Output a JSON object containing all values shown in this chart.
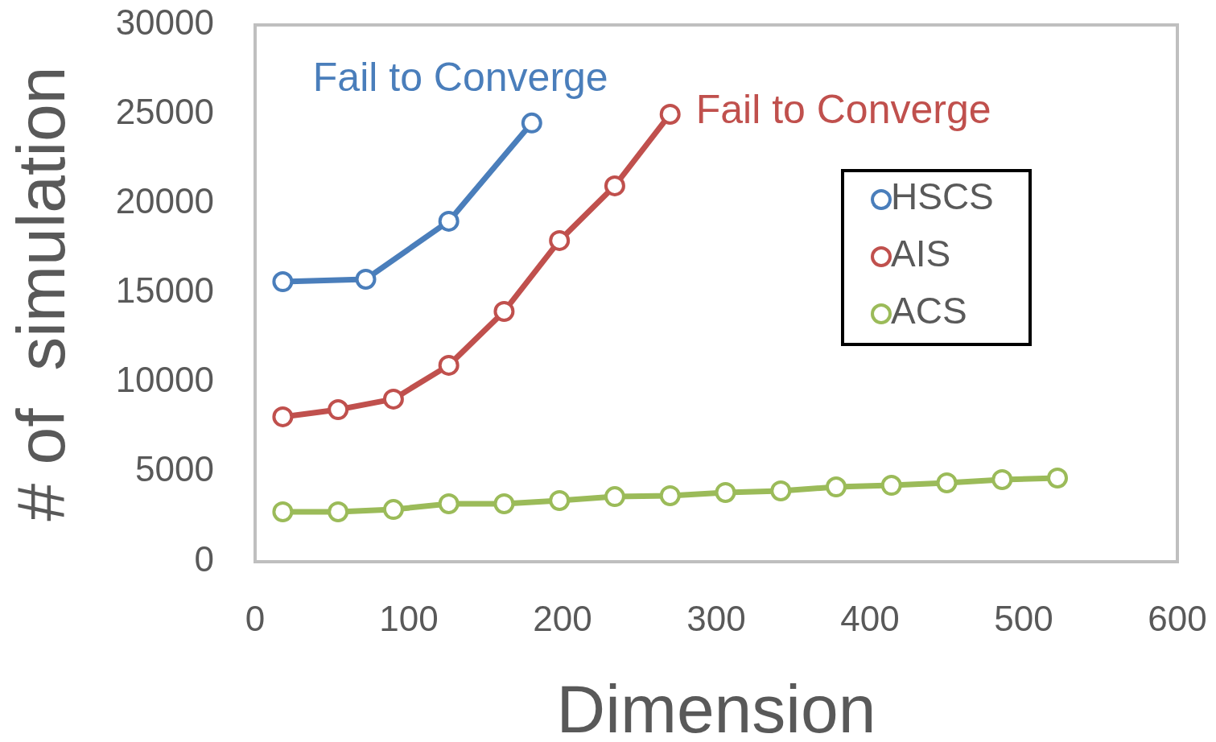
{
  "chart_data": {
    "type": "line",
    "xlabel": "Dimension",
    "ylabel": "# of  simulation",
    "xlim": [
      0,
      600
    ],
    "xticks": [
      0,
      100,
      200,
      300,
      400,
      500,
      600
    ],
    "ylim": [
      0,
      30000
    ],
    "yticks": [
      0,
      5000,
      10000,
      15000,
      20000,
      25000,
      30000
    ],
    "grid": false,
    "legend": "top right",
    "marker": "circle",
    "line_style": "solid",
    "series": [
      {
        "name": "HSCS",
        "color": "#4a7ebb",
        "x": [
          18,
          72,
          126,
          180
        ],
        "values": [
          15650,
          15790,
          19030,
          24520
        ]
      },
      {
        "name": "AIS",
        "color": "#c0504d",
        "x": [
          18,
          54,
          90,
          126,
          162,
          198,
          234,
          270
        ],
        "values": [
          8100,
          8500,
          9090,
          10980,
          13990,
          17950,
          21010,
          25010
        ]
      },
      {
        "name": "ACS",
        "color": "#9bbb59",
        "x": [
          18,
          54,
          90,
          126,
          162,
          198,
          234,
          270,
          306,
          342,
          378,
          414,
          450,
          486,
          522
        ],
        "values": [
          2790,
          2790,
          2920,
          3240,
          3240,
          3420,
          3640,
          3690,
          3870,
          3960,
          4180,
          4270,
          4410,
          4590,
          4680
        ]
      }
    ],
    "annotations": [
      {
        "text": "Fail to Converge",
        "x": 180,
        "y": 24520
      },
      {
        "text": "Fail to Converge",
        "x": 270,
        "y": 25010
      }
    ]
  }
}
